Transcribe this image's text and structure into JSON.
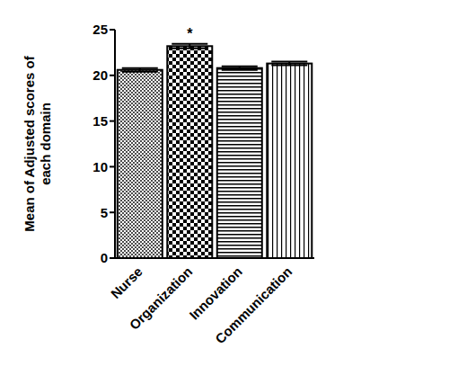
{
  "chart_data": {
    "type": "bar",
    "y_label": "Mean of Adjusted scores of each domain",
    "categories": [
      "Nurse",
      "Organization",
      "Innovation",
      "Communication"
    ],
    "values": [
      20.6,
      23.2,
      20.8,
      21.3
    ],
    "errors": [
      0.2,
      0.25,
      0.2,
      0.2
    ],
    "color": "#000000",
    "ylim": [
      0,
      25
    ],
    "yticks": [
      0,
      5,
      10,
      15,
      20,
      25
    ],
    "grid": false,
    "annotations": [
      {
        "category": "Organization",
        "text": "*"
      }
    ]
  }
}
